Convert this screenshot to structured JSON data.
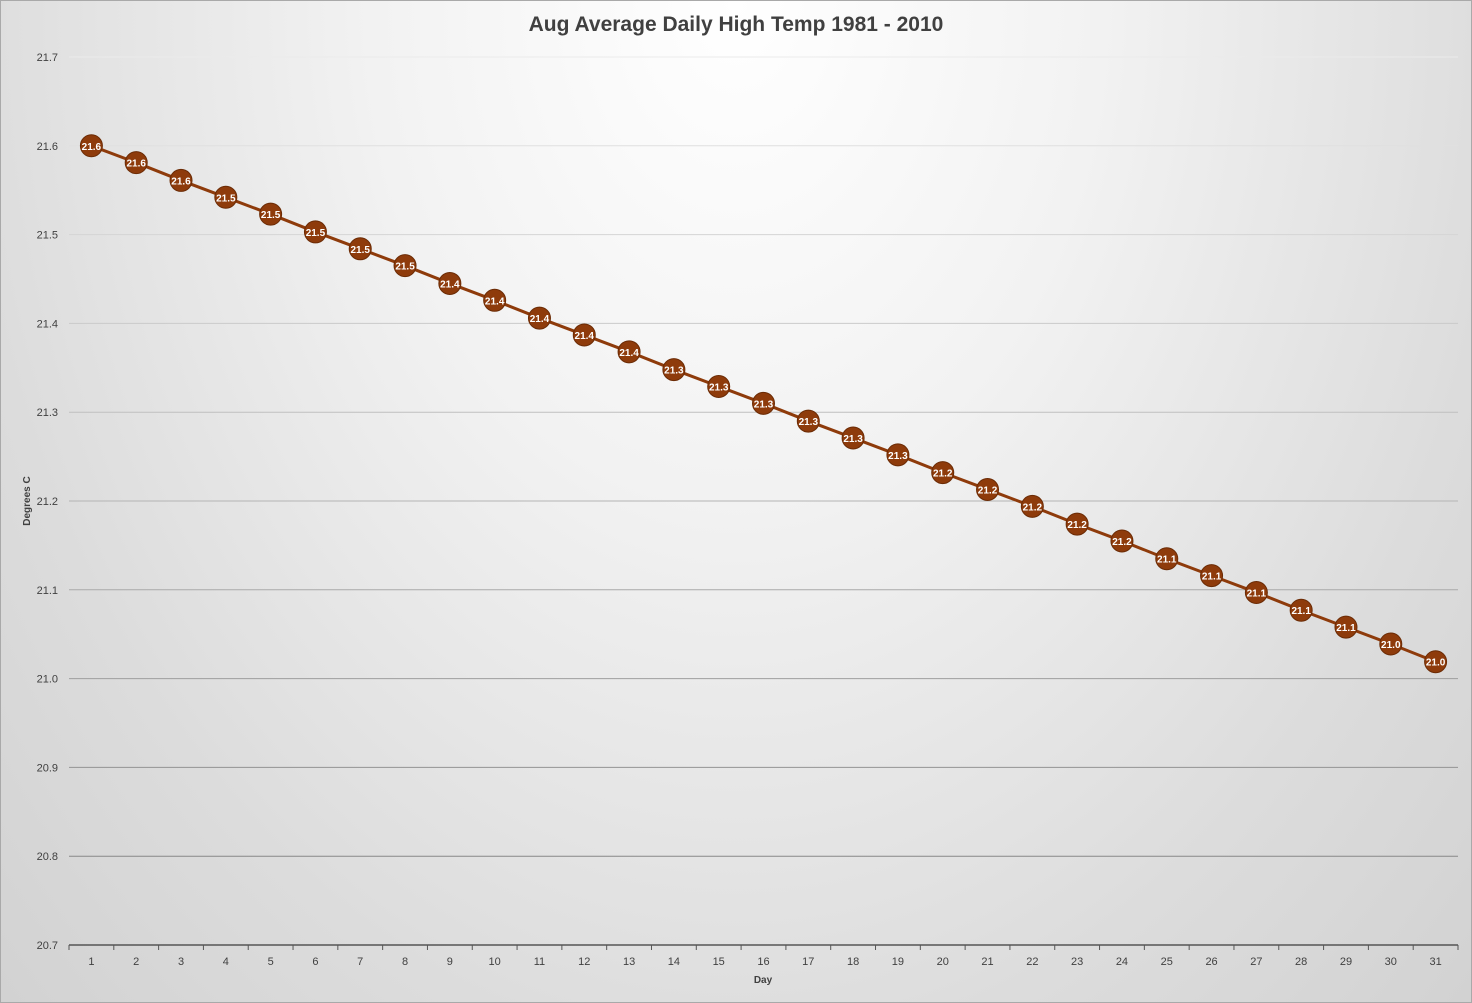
{
  "chart_data": {
    "type": "line",
    "title": "Aug Average Daily High Temp 1981 - 2010",
    "xlabel": "Day",
    "ylabel": "Degrees C",
    "ylim": [
      20.7,
      21.7
    ],
    "y_ticks": [
      "20.7",
      "20.8",
      "20.9",
      "21.0",
      "21.1",
      "21.2",
      "21.3",
      "21.4",
      "21.5",
      "21.6",
      "21.7"
    ],
    "grid": true,
    "series": [
      {
        "color": "#8e3b0b",
        "x": [
          1,
          2,
          3,
          4,
          5,
          6,
          7,
          8,
          9,
          10,
          11,
          12,
          13,
          14,
          15,
          16,
          17,
          18,
          19,
          20,
          21,
          22,
          23,
          24,
          25,
          26,
          27,
          28,
          29,
          30,
          31
        ],
        "values": [
          21.6,
          21.581,
          21.561,
          21.542,
          21.523,
          21.503,
          21.484,
          21.465,
          21.445,
          21.426,
          21.406,
          21.387,
          21.368,
          21.348,
          21.329,
          21.31,
          21.29,
          21.271,
          21.252,
          21.232,
          21.213,
          21.194,
          21.174,
          21.155,
          21.135,
          21.116,
          21.097,
          21.077,
          21.058,
          21.039,
          21.019
        ],
        "labels": [
          "21.6",
          "21.6",
          "21.6",
          "21.5",
          "21.5",
          "21.5",
          "21.5",
          "21.5",
          "21.4",
          "21.4",
          "21.4",
          "21.4",
          "21.4",
          "21.3",
          "21.3",
          "21.3",
          "21.3",
          "21.3",
          "21.3",
          "21.2",
          "21.2",
          "21.2",
          "21.2",
          "21.2",
          "21.1",
          "21.1",
          "21.1",
          "21.1",
          "21.1",
          "21.0",
          "21.0"
        ]
      }
    ]
  }
}
